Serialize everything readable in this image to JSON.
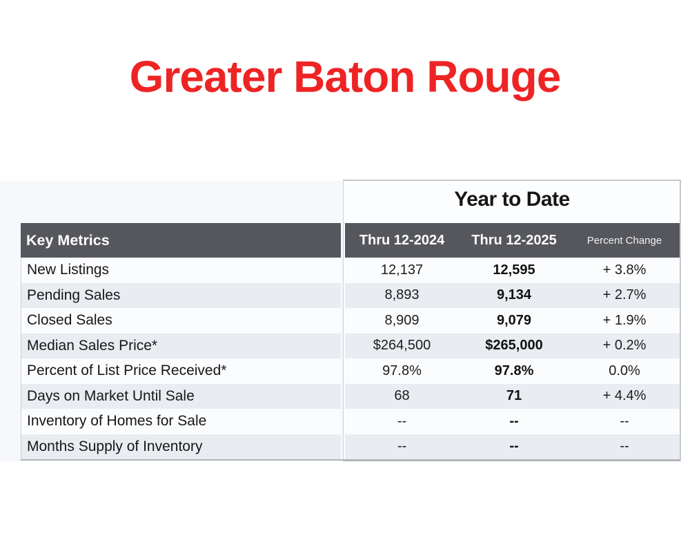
{
  "page": {
    "title": "Greater Baton Rouge"
  },
  "report": {
    "group_header": "Year to Date",
    "columns": {
      "metrics": "Key Metrics",
      "prev": "Thru 12-2024",
      "curr": "Thru 12-2025",
      "change": "Percent Change"
    },
    "rows": [
      {
        "metric": "New Listings",
        "prev": "12,137",
        "curr": "12,595",
        "change": "+ 3.8%"
      },
      {
        "metric": "Pending Sales",
        "prev": "8,893",
        "curr": "9,134",
        "change": "+ 2.7%"
      },
      {
        "metric": "Closed Sales",
        "prev": "8,909",
        "curr": "9,079",
        "change": "+ 1.9%"
      },
      {
        "metric": "Median Sales Price*",
        "prev": "$264,500",
        "curr": "$265,000",
        "change": "+ 0.2%"
      },
      {
        "metric": "Percent of List Price Received*",
        "prev": "97.8%",
        "curr": "97.8%",
        "change": "0.0%"
      },
      {
        "metric": "Days on Market Until Sale",
        "prev": "68",
        "curr": "71",
        "change": "+ 4.4%"
      },
      {
        "metric": "Inventory of Homes for Sale",
        "prev": "--",
        "curr": "--",
        "change": "--"
      },
      {
        "metric": "Months Supply of Inventory",
        "prev": "--",
        "curr": "--",
        "change": "--"
      }
    ]
  },
  "colors": {
    "title_red": "#ee2424",
    "header_bar": "#56575c",
    "row_alt": "#e9ecf1",
    "row_base": "#fbfcfe",
    "backdrop_left": "#f7f8fb",
    "panel_right": "#fcfdff"
  }
}
